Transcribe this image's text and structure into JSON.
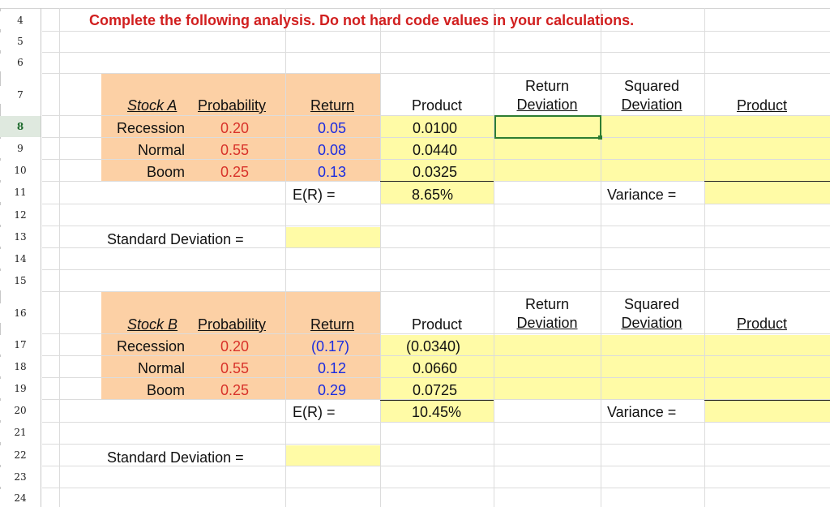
{
  "row_numbers": [
    "4",
    "5",
    "6",
    "7",
    "8",
    "9",
    "10",
    "11",
    "12",
    "13",
    "14",
    "15",
    "16",
    "17",
    "18",
    "19",
    "20",
    "21",
    "22",
    "23",
    "24"
  ],
  "instruction": "Complete the following analysis. Do not hard code values in your calculations.",
  "stock_a": {
    "header": {
      "stock": "Stock A",
      "probability": "Probability",
      "return": "Return",
      "product": "Product",
      "return_deviation_1": "Return",
      "return_deviation_2": "Deviation",
      "squared_deviation_1": "Squared",
      "squared_deviation_2": "Deviation",
      "product2": "Product"
    },
    "rows": [
      {
        "state": "Recession",
        "probability": "0.20",
        "return": "0.05",
        "product": "0.0100"
      },
      {
        "state": "Normal",
        "probability": "0.55",
        "return": "0.08",
        "product": "0.0440"
      },
      {
        "state": "Boom",
        "probability": "0.25",
        "return": "0.13",
        "product": "0.0325"
      }
    ],
    "er_label": "E(R) =",
    "er_value": "8.65%",
    "variance_label": "Variance =",
    "std_label": "Standard Deviation ="
  },
  "stock_b": {
    "header": {
      "stock": "Stock B",
      "probability": "Probability",
      "return": "Return",
      "product": "Product",
      "return_deviation_1": "Return",
      "return_deviation_2": "Deviation",
      "squared_deviation_1": "Squared",
      "squared_deviation_2": "Deviation",
      "product2": "Product"
    },
    "rows": [
      {
        "state": "Recession",
        "probability": "0.20",
        "return": "(0.17)",
        "product": "(0.0340)"
      },
      {
        "state": "Normal",
        "probability": "0.55",
        "return": "0.12",
        "product": "0.0660"
      },
      {
        "state": "Boom",
        "probability": "0.25",
        "return": "0.29",
        "product": "0.0725"
      }
    ],
    "er_label": "E(R) =",
    "er_value": "10.45%",
    "variance_label": "Variance =",
    "std_label": "Standard Deviation ="
  },
  "colors": {
    "input_blue": "#1a2ce0",
    "prob_red": "#d8322a",
    "orange_fill": "#fcd0a5",
    "yellow_fill": "#fffba6",
    "title_red": "#d11f1f"
  }
}
